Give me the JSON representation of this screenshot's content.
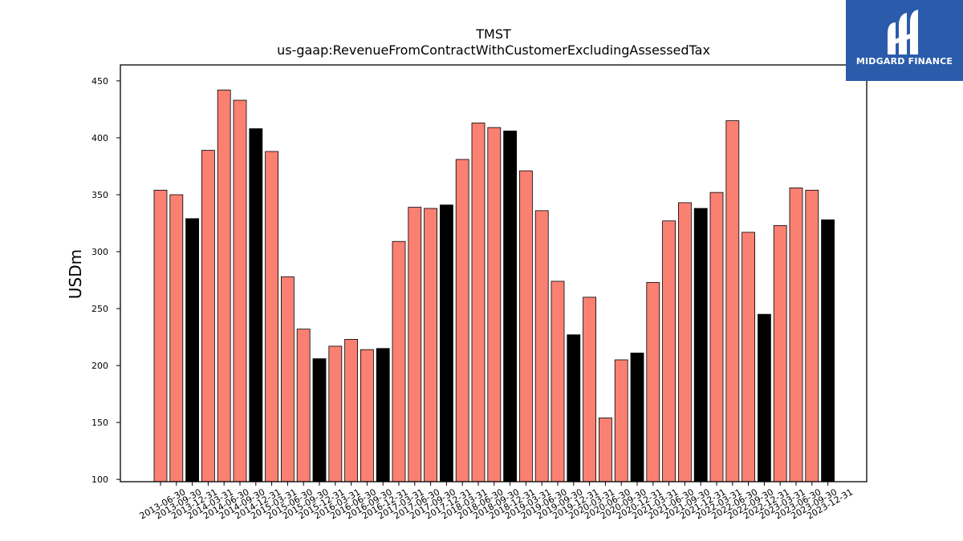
{
  "logo": {
    "text": "MIDGARD FINANCE"
  },
  "colors": {
    "normal": "#fa8072",
    "year_end": "#000000"
  },
  "chart_data": {
    "type": "bar",
    "title": "TMST",
    "subtitle": "us-gaap:RevenueFromContractWithCustomerExcludingAssessedTax",
    "xlabel": "",
    "ylabel": "USDm",
    "ylim": [
      98,
      464
    ],
    "yticks": [
      100,
      150,
      200,
      250,
      300,
      350,
      400,
      450
    ],
    "grid": false,
    "categories": [
      "2013-06-30",
      "2013-09-30",
      "2013-12-31",
      "2014-03-31",
      "2014-06-30",
      "2014-09-30",
      "2014-12-31",
      "2015-03-31",
      "2015-06-30",
      "2015-09-30",
      "2015-12-31",
      "2016-03-31",
      "2016-06-30",
      "2016-09-30",
      "2016-12-31",
      "2017-03-31",
      "2017-06-30",
      "2017-09-30",
      "2017-12-31",
      "2018-03-31",
      "2018-06-30",
      "2018-09-30",
      "2018-12-31",
      "2019-03-31",
      "2019-06-30",
      "2019-09-30",
      "2019-12-31",
      "2020-03-31",
      "2020-06-30",
      "2020-09-30",
      "2020-12-31",
      "2021-03-31",
      "2021-06-30",
      "2021-09-30",
      "2021-12-31",
      "2022-03-31",
      "2022-06-30",
      "2022-09-30",
      "2022-12-31",
      "2023-03-31",
      "2023-06-30",
      "2023-09-30",
      "2023-12-31"
    ],
    "values": [
      354,
      350,
      329,
      389,
      442,
      433,
      408,
      388,
      278,
      232,
      206,
      217,
      223,
      214,
      215,
      309,
      339,
      338,
      341,
      381,
      413,
      409,
      406,
      371,
      336,
      274,
      227,
      260,
      154,
      205,
      211,
      273,
      327,
      343,
      338,
      352,
      415,
      317,
      245,
      323,
      356,
      354,
      328
    ],
    "bar_colors": [
      "normal",
      "normal",
      "year_end",
      "normal",
      "normal",
      "normal",
      "year_end",
      "normal",
      "normal",
      "normal",
      "year_end",
      "normal",
      "normal",
      "normal",
      "year_end",
      "normal",
      "normal",
      "normal",
      "year_end",
      "normal",
      "normal",
      "normal",
      "year_end",
      "normal",
      "normal",
      "normal",
      "year_end",
      "normal",
      "normal",
      "normal",
      "year_end",
      "normal",
      "normal",
      "normal",
      "year_end",
      "normal",
      "normal",
      "normal",
      "year_end",
      "normal",
      "normal",
      "normal",
      "year_end"
    ]
  }
}
